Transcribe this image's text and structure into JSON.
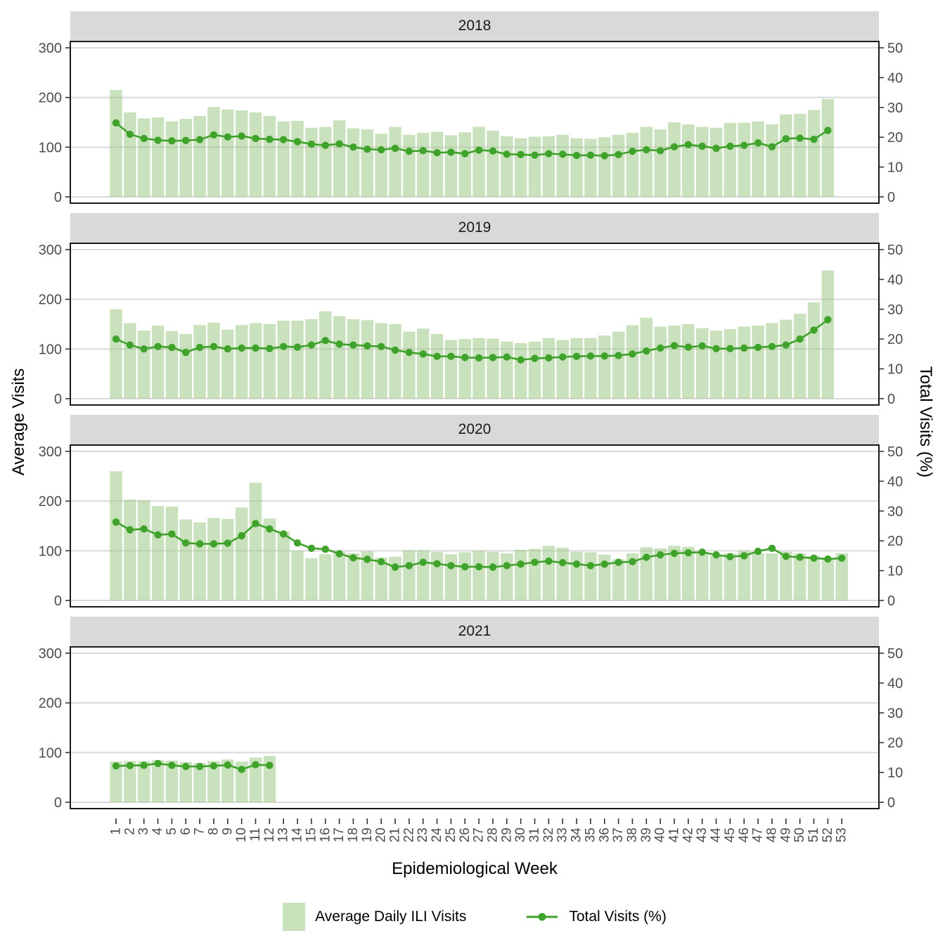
{
  "figure": {
    "y_left_title": "Average Visits",
    "y_right_title": "Total Visits (%)",
    "x_title": "Epidemiological Week"
  },
  "axes": {
    "y_left_ticks": [
      0,
      100,
      200,
      300
    ],
    "y_right_ticks": [
      0,
      10,
      20,
      30,
      40,
      50
    ],
    "x_tick_labels": [
      "1",
      "2",
      "3",
      "4",
      "5",
      "6",
      "7",
      "8",
      "9",
      "10",
      "11",
      "12",
      "13",
      "14",
      "15",
      "16",
      "17",
      "18",
      "19",
      "20",
      "21",
      "22",
      "23",
      "24",
      "25",
      "26",
      "27",
      "28",
      "29",
      "30",
      "31",
      "32",
      "33",
      "34",
      "35",
      "36",
      "37",
      "38",
      "39",
      "40",
      "41",
      "42",
      "43",
      "44",
      "45",
      "46",
      "47",
      "48",
      "49",
      "50",
      "51",
      "52",
      "53"
    ],
    "grid_values": [
      0,
      100,
      200,
      300
    ]
  },
  "colors": {
    "bar_fill": "#9ccb86",
    "bar_opacity": 0.55,
    "line": "#3fa32b",
    "gridline": "#d9d9d9",
    "panel_border": "#1a1a1a",
    "strip_bg": "#d9d9d9",
    "axis_text": "#4d4d4d",
    "tick_mark": "#333333"
  },
  "legend": {
    "items": [
      {
        "label": "Average Daily ILI Visits",
        "type": "bar"
      },
      {
        "label": "Total Visits (%)",
        "type": "line"
      }
    ]
  },
  "chart_data": [
    {
      "type": "bar",
      "year": "2018",
      "weeks_start": 1,
      "xlabel": "Epidemiological Week",
      "ylabel_left": "Average Visits",
      "ylabel_right": "Total Visits (%)",
      "ylim_left": [
        0,
        300
      ],
      "ylim_right": [
        0,
        50
      ],
      "series": [
        {
          "name": "Average Daily ILI Visits",
          "type": "bar",
          "axis": "left",
          "values": [
            215,
            170,
            158,
            160,
            152,
            157,
            163,
            181,
            176,
            174,
            170,
            163,
            152,
            153,
            139,
            141,
            154,
            138,
            136,
            127,
            141,
            125,
            129,
            131,
            124,
            130,
            141,
            133,
            122,
            118,
            121,
            122,
            125,
            118,
            117,
            120,
            125,
            129,
            141,
            136,
            150,
            146,
            141,
            139,
            149,
            149,
            152,
            146,
            166,
            167,
            175,
            197
          ]
        },
        {
          "name": "Total Visits (%)",
          "type": "line",
          "axis": "right",
          "values": [
            24.8,
            21.0,
            19.6,
            19.0,
            18.8,
            18.9,
            19.2,
            20.8,
            20.1,
            20.4,
            19.6,
            19.3,
            19.2,
            18.5,
            17.7,
            17.3,
            17.8,
            16.7,
            16.0,
            15.8,
            16.3,
            15.3,
            15.5,
            14.8,
            15.0,
            14.5,
            15.7,
            15.4,
            14.3,
            14.2,
            14.0,
            14.5,
            14.3,
            13.9,
            14.0,
            13.8,
            14.2,
            15.3,
            15.8,
            15.5,
            16.8,
            17.5,
            17.0,
            16.3,
            17.0,
            17.3,
            18.1,
            16.8,
            19.5,
            19.7,
            19.3,
            22.3
          ]
        }
      ]
    },
    {
      "type": "bar",
      "year": "2019",
      "weeks_start": 1,
      "ylim_left": [
        0,
        300
      ],
      "ylim_right": [
        0,
        50
      ],
      "series": [
        {
          "name": "Average Daily ILI Visits",
          "type": "bar",
          "axis": "left",
          "values": [
            180,
            152,
            137,
            147,
            136,
            130,
            148,
            153,
            139,
            148,
            152,
            150,
            157,
            157,
            160,
            176,
            166,
            160,
            158,
            152,
            150,
            135,
            141,
            130,
            118,
            120,
            122,
            121,
            115,
            112,
            115,
            122,
            118,
            122,
            122,
            127,
            135,
            148,
            163,
            145,
            147,
            150,
            142,
            137,
            140,
            145,
            147,
            152,
            159,
            171,
            194,
            258
          ]
        },
        {
          "name": "Total Visits (%)",
          "type": "line",
          "axis": "right",
          "values": [
            20.0,
            18.0,
            16.7,
            17.5,
            17.2,
            15.5,
            17.2,
            17.5,
            16.7,
            17.0,
            17.0,
            16.8,
            17.5,
            17.3,
            18.0,
            19.5,
            18.3,
            18.0,
            17.7,
            17.5,
            16.3,
            15.5,
            15.0,
            14.2,
            14.2,
            13.8,
            13.7,
            13.8,
            14.0,
            13.0,
            13.5,
            13.7,
            14.0,
            14.2,
            14.3,
            14.3,
            14.5,
            15.0,
            16.0,
            17.0,
            17.8,
            17.3,
            17.7,
            16.8,
            16.8,
            17.0,
            17.2,
            17.5,
            18.0,
            20.0,
            23.0,
            26.5
          ]
        }
      ]
    },
    {
      "type": "bar",
      "year": "2020",
      "weeks_start": 1,
      "ylim_left": [
        0,
        300
      ],
      "ylim_right": [
        0,
        50
      ],
      "series": [
        {
          "name": "Average Daily ILI Visits",
          "type": "bar",
          "axis": "left",
          "values": [
            260,
            203,
            202,
            190,
            189,
            163,
            157,
            166,
            164,
            187,
            237,
            165,
            139,
            100,
            85,
            93,
            98,
            95,
            99,
            86,
            88,
            101,
            101,
            98,
            93,
            97,
            100,
            98,
            95,
            102,
            104,
            110,
            106,
            98,
            97,
            92,
            83,
            95,
            107,
            105,
            110,
            108,
            95,
            90,
            95,
            100,
            95,
            95,
            98,
            95,
            90,
            85,
            95
          ]
        },
        {
          "name": "Total Visits (%)",
          "type": "line",
          "axis": "right",
          "values": [
            26.3,
            23.7,
            24.0,
            22.0,
            22.3,
            19.3,
            19.0,
            19.0,
            19.2,
            21.7,
            25.8,
            24.0,
            22.3,
            19.3,
            17.5,
            17.2,
            15.7,
            14.3,
            13.8,
            13.0,
            11.2,
            11.7,
            12.8,
            12.3,
            11.7,
            11.3,
            11.3,
            11.2,
            11.7,
            12.2,
            12.8,
            13.2,
            12.7,
            12.2,
            11.7,
            12.2,
            12.8,
            13.0,
            14.5,
            15.3,
            15.8,
            16.0,
            16.2,
            15.3,
            14.7,
            15.0,
            16.5,
            17.5,
            14.8,
            14.5,
            14.2,
            13.9,
            14.2
          ]
        }
      ]
    },
    {
      "type": "bar",
      "year": "2021",
      "weeks_start": 1,
      "ylim_left": [
        0,
        300
      ],
      "ylim_right": [
        0,
        50
      ],
      "series": [
        {
          "name": "Average Daily ILI Visits",
          "type": "bar",
          "axis": "left",
          "values": [
            82,
            83,
            83,
            85,
            84,
            81,
            79,
            83,
            86,
            82,
            90,
            93
          ]
        },
        {
          "name": "Total Visits (%)",
          "type": "line",
          "axis": "right",
          "values": [
            12.2,
            12.3,
            12.4,
            13.0,
            12.4,
            12.0,
            12.0,
            12.2,
            12.5,
            11.0,
            12.6,
            12.4
          ]
        }
      ]
    }
  ]
}
